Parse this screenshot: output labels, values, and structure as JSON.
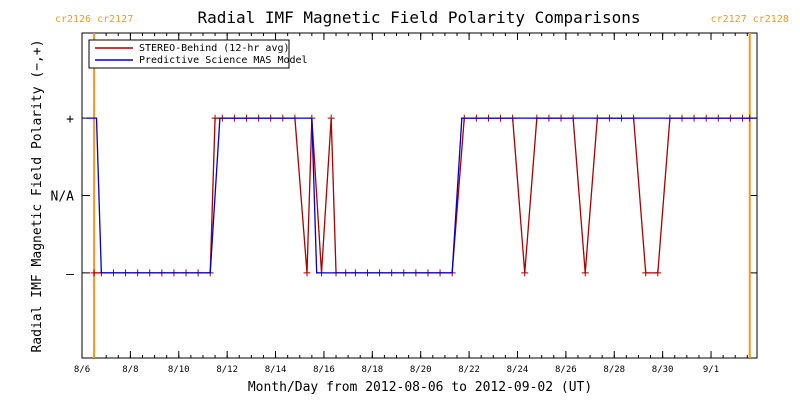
{
  "chart_data": {
    "type": "line",
    "title": "Radial IMF Magnetic Field Polarity Comparisons",
    "xlabel": "Month/Day from 2012-08-06 to 2012-09-02 (UT)",
    "ylabel": "Radial IMF Magnetic Field Polarity (−,+)",
    "x_tick_labels": [
      "8/6",
      "8/8",
      "8/10",
      "8/12",
      "8/14",
      "8/16",
      "8/18",
      "8/20",
      "8/22",
      "8/24",
      "8/26",
      "8/28",
      "8/30",
      "9/1"
    ],
    "x_tick_values": [
      0.7,
      2.7,
      4.7,
      6.7,
      8.7,
      10.7,
      12.7,
      14.7,
      16.7,
      18.7,
      20.7,
      22.7,
      24.7,
      26.7
    ],
    "xlim": [
      0.7,
      28.6
    ],
    "y_tick_labels": [
      "–",
      "N/A",
      "+"
    ],
    "y_tick_values": [
      -1,
      0,
      1
    ],
    "ylim": [
      -2.1,
      2.1
    ],
    "legend_position": "top-left",
    "carrington_markers": [
      {
        "x": 1.2,
        "label": "cr2126 cr2127"
      },
      {
        "x": 28.3,
        "label": "cr2127 cr2128"
      }
    ],
    "colors": {
      "stereo": "#aa0000",
      "mas": "#0000cc",
      "markers": "#f39a1e",
      "axes": "#000000"
    },
    "series": [
      {
        "name": "STEREO-Behind (12-hr avg)",
        "color": "#aa0000",
        "markers": true,
        "x": [
          1.2,
          1.5,
          2.0,
          2.5,
          3.0,
          3.5,
          4.0,
          4.5,
          5.0,
          5.5,
          6.0,
          6.2,
          6.5,
          7.0,
          7.5,
          8.0,
          8.5,
          9.0,
          9.5,
          10.0,
          10.2,
          10.6,
          11.0,
          11.2,
          11.6,
          12.0,
          12.5,
          13.0,
          13.5,
          14.0,
          14.5,
          15.0,
          15.5,
          16.0,
          16.5,
          17.0,
          17.5,
          18.0,
          18.5,
          19.0,
          19.5,
          20.0,
          20.5,
          21.0,
          21.5,
          22.0,
          22.5,
          23.0,
          23.5,
          24.0,
          24.5,
          25.0,
          25.5,
          26.0,
          26.5,
          27.0,
          27.5,
          28.0,
          28.3
        ],
        "y": [
          -1,
          -1,
          -1,
          -1,
          -1,
          -1,
          -1,
          -1,
          -1,
          -1,
          -1,
          1,
          1,
          1,
          1,
          1,
          1,
          1,
          1,
          -1,
          1,
          -1,
          1,
          -1,
          -1,
          -1,
          -1,
          -1,
          -1,
          -1,
          -1,
          -1,
          -1,
          -1,
          1,
          1,
          1,
          1,
          1,
          -1,
          1,
          1,
          1,
          1,
          -1,
          1,
          1,
          1,
          1,
          -1,
          -1,
          1,
          1,
          1,
          1,
          1,
          1,
          1,
          1
        ]
      },
      {
        "name": "Predictive Science MAS Model",
        "color": "#0000cc",
        "markers": false,
        "x": [
          0.9,
          1.3,
          1.5,
          1.7,
          6.0,
          6.4,
          10.0,
          10.2,
          10.4,
          10.5,
          16.0,
          16.4,
          28.6
        ],
        "y": [
          1,
          1,
          -1,
          -1,
          -1,
          1,
          1,
          1,
          -1,
          -1,
          -1,
          1,
          1
        ]
      }
    ]
  }
}
